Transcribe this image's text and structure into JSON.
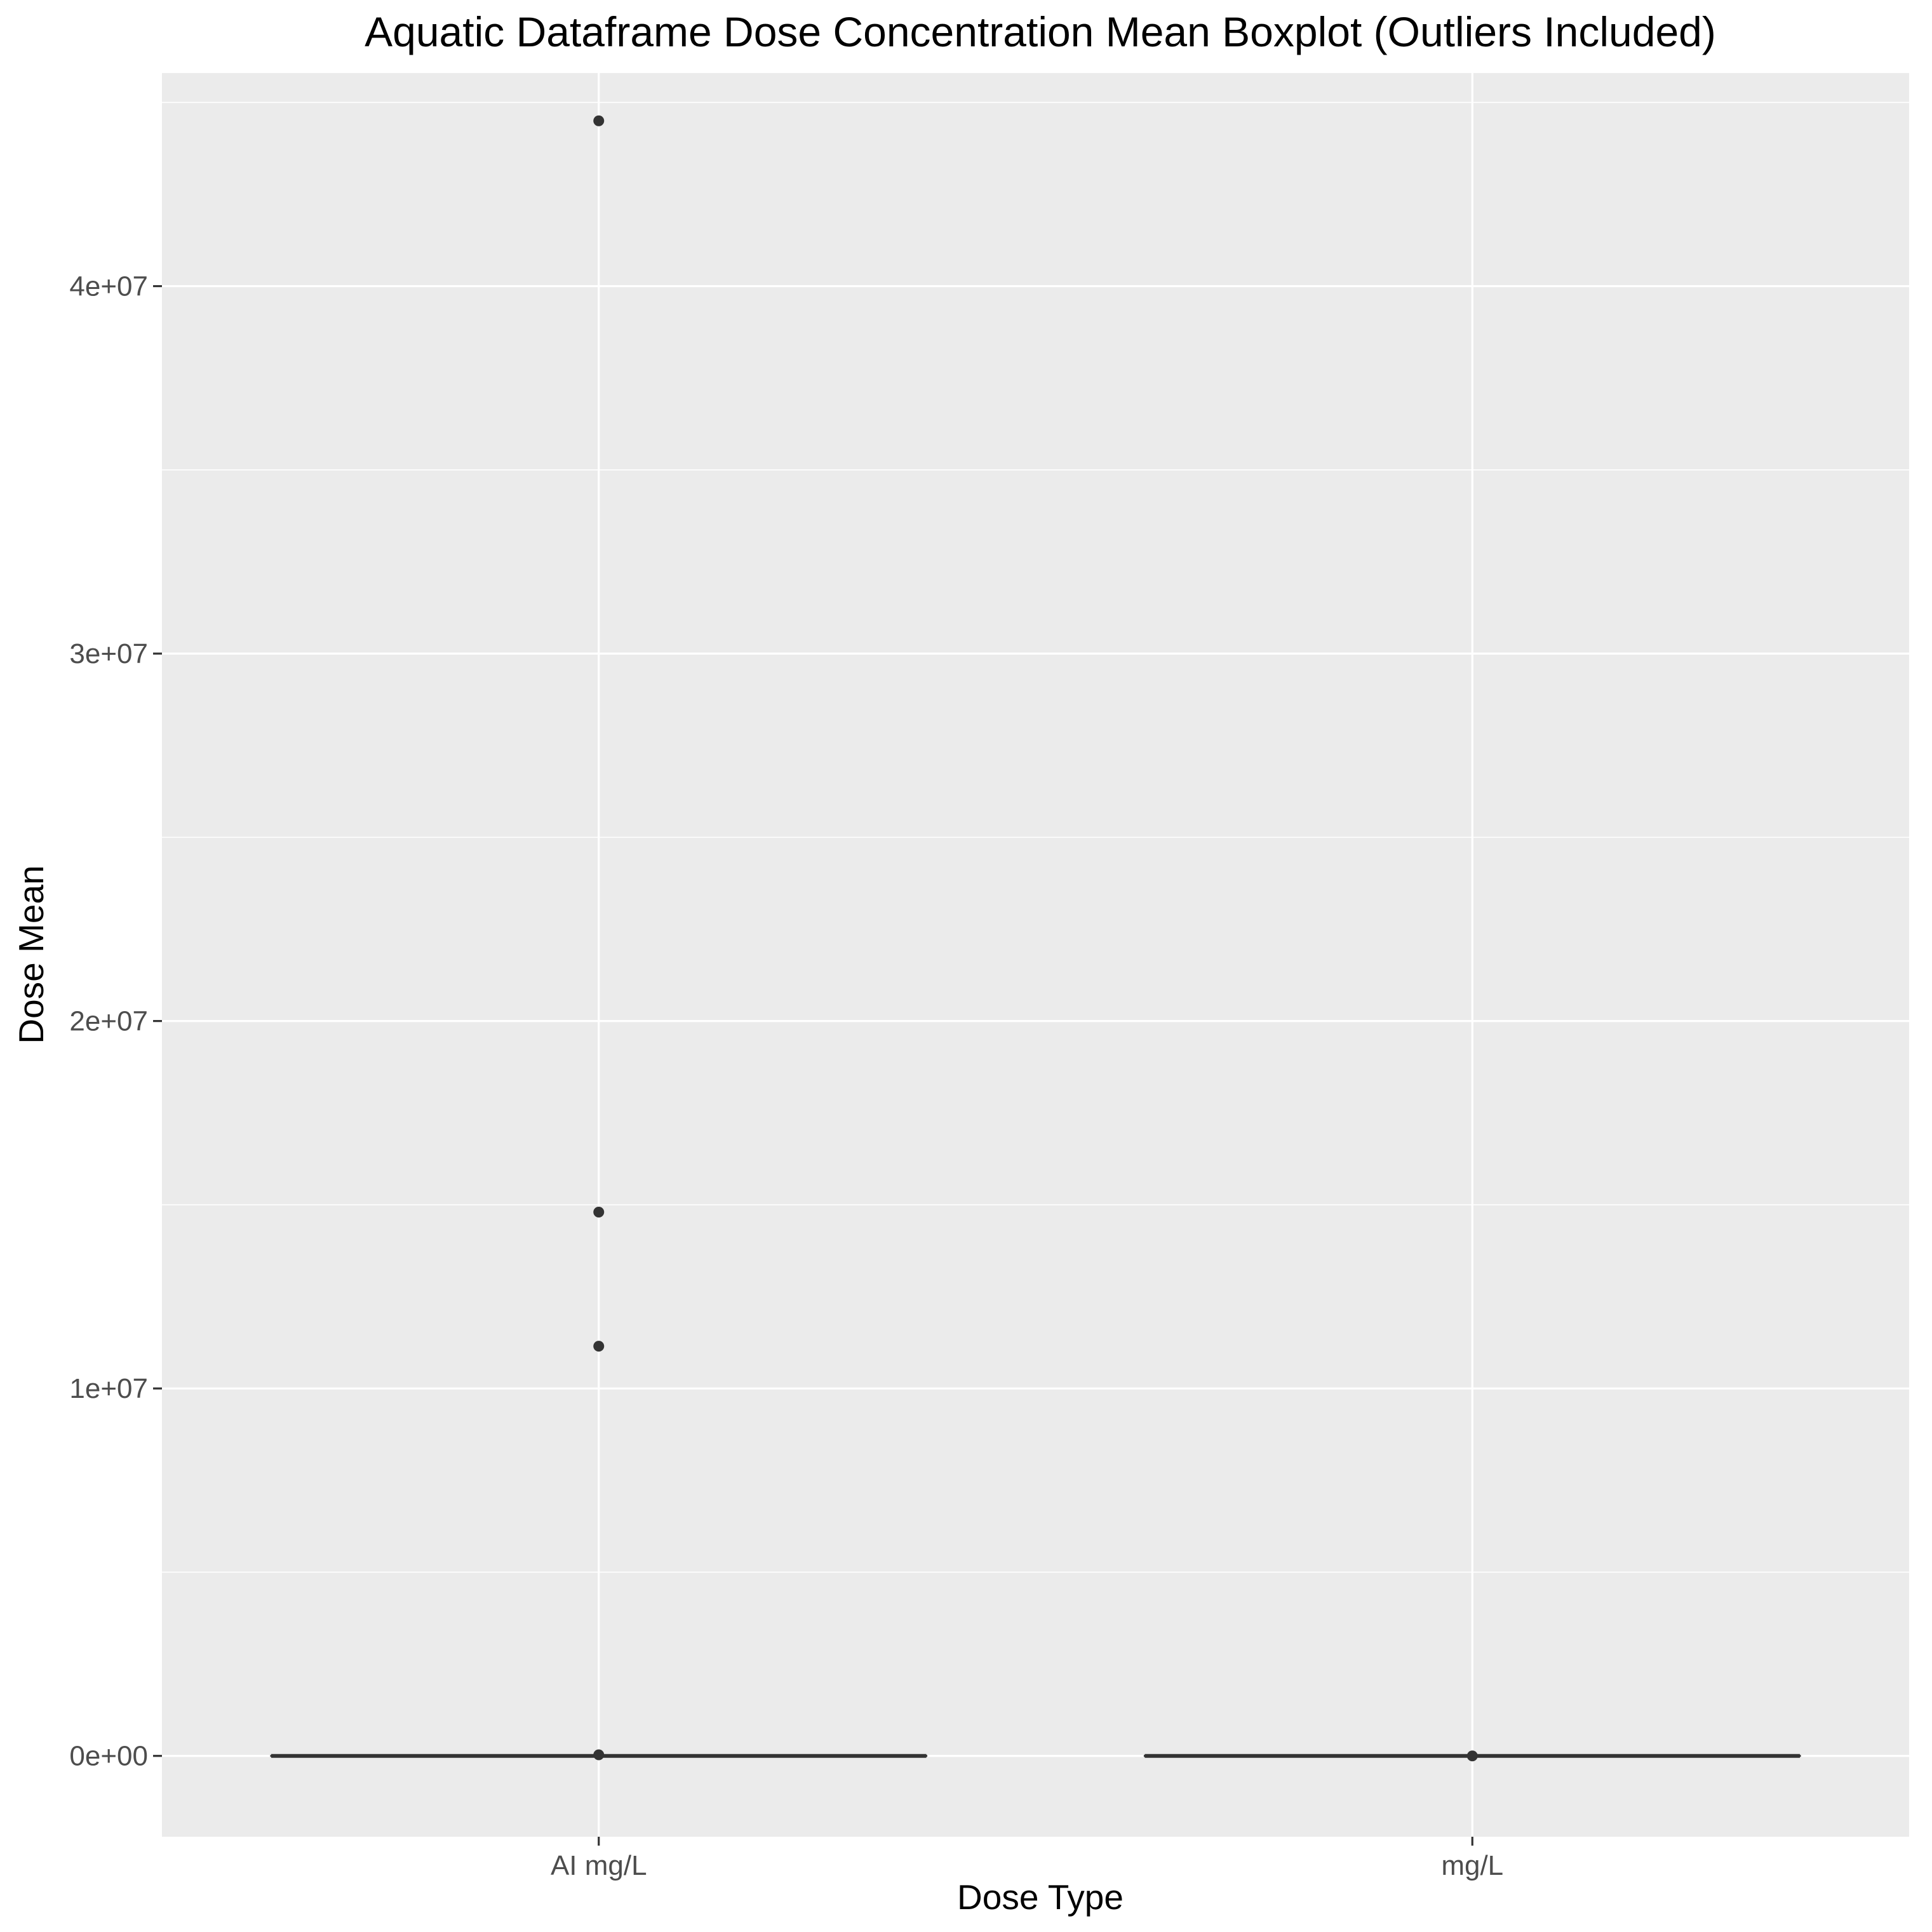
{
  "chart_data": {
    "type": "boxplot",
    "title": "Aquatic Dataframe Dose Concentration Mean Boxplot (Outliers Included)",
    "xlabel": "Dose Type",
    "ylabel": "Dose Mean",
    "categories": [
      "AI mg/L",
      "mg/L"
    ],
    "ylim": [
      -2200000,
      45800000
    ],
    "yticks": [
      0,
      10000000,
      20000000,
      30000000,
      40000000
    ],
    "yticklabels": [
      "0e+00",
      "1e+07",
      "2e+07",
      "3e+07",
      "4e+07"
    ],
    "grid": true,
    "boxes": [
      {
        "category": "AI mg/L",
        "q1": 0,
        "median": 0,
        "q3": 0,
        "whisker_low": 0,
        "whisker_high": 0,
        "outliers": [
          44500000,
          14800000,
          11150000,
          30000
        ]
      },
      {
        "category": "mg/L",
        "q1": 0,
        "median": 0,
        "q3": 0,
        "whisker_low": 0,
        "whisker_high": 0,
        "outliers": [
          0
        ]
      }
    ],
    "colors": {
      "panel_background": "#ebebeb",
      "grid_line": "#ffffff",
      "box_line": "#333333",
      "outlier_point": "#333333",
      "tick_label": "#4d4d4d",
      "tick_mark": "#333333"
    }
  }
}
